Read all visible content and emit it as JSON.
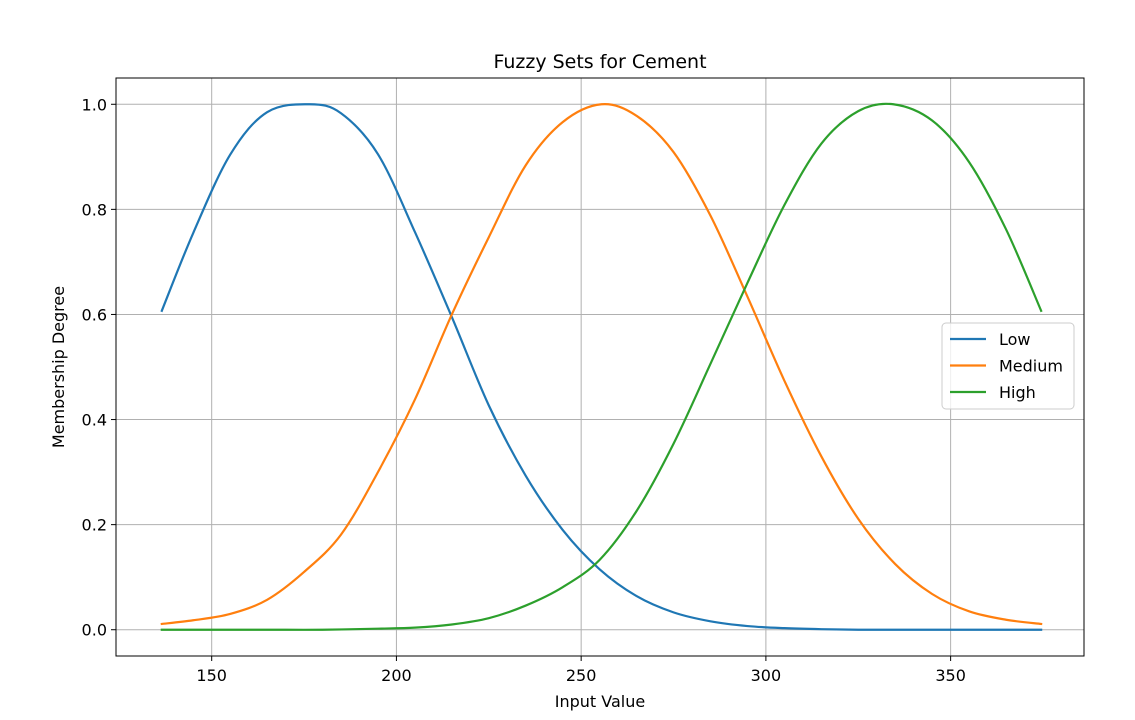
{
  "chart_data": {
    "type": "line",
    "title": "Fuzzy Sets for Cement",
    "xlabel": "Input Value",
    "ylabel": "Membership Degree",
    "xlim": [
      124.1,
      386.1
    ],
    "ylim": [
      -0.05,
      1.05
    ],
    "xticks": [
      150,
      200,
      250,
      300,
      350
    ],
    "yticks": [
      0.0,
      0.2,
      0.4,
      0.6,
      0.8,
      1.0
    ],
    "xtick_labels": [
      "150",
      "200",
      "250",
      "300",
      "350"
    ],
    "ytick_labels": [
      "0.0",
      "0.2",
      "0.4",
      "0.6",
      "0.8",
      "1.0"
    ],
    "grid": true,
    "legend": "center-right",
    "series": [
      {
        "name": "Low",
        "color": "#1f77b4",
        "x": [
          136.5,
          145,
          155,
          165,
          176.5,
          185,
          195,
          205,
          215,
          225,
          235,
          245,
          255,
          265,
          275,
          285,
          295,
          305,
          315,
          325,
          335,
          345,
          355,
          365,
          374.5
        ],
        "y": [
          0.607,
          0.755,
          0.904,
          0.985,
          1.0,
          0.983,
          0.905,
          0.757,
          0.595,
          0.427,
          0.293,
          0.19,
          0.115,
          0.064,
          0.033,
          0.016,
          0.007,
          0.003,
          0.001,
          0.0,
          0.0,
          0.0,
          0.0,
          0.0,
          0.0
        ]
      },
      {
        "name": "Medium",
        "color": "#ff7f0e",
        "x": [
          136.5,
          145,
          155,
          165,
          175,
          185,
          195,
          205,
          215,
          225,
          235,
          245,
          255.5,
          265,
          275,
          285,
          295,
          305,
          315,
          325,
          335,
          345,
          355,
          365,
          374.5
        ],
        "y": [
          0.011,
          0.018,
          0.03,
          0.057,
          0.11,
          0.181,
          0.3,
          0.438,
          0.6,
          0.747,
          0.884,
          0.966,
          1.0,
          0.978,
          0.909,
          0.788,
          0.634,
          0.474,
          0.33,
          0.211,
          0.125,
          0.068,
          0.035,
          0.019,
          0.011
        ]
      },
      {
        "name": "High",
        "color": "#2ca02c",
        "x": [
          136.5,
          150,
          165,
          180,
          195,
          205,
          215,
          225,
          235,
          245,
          255,
          265,
          275,
          285,
          295,
          305,
          315,
          325,
          334.5,
          345,
          355,
          365,
          374.5
        ],
        "y": [
          0.0,
          0.0,
          0.0,
          0.0,
          0.002,
          0.004,
          0.01,
          0.022,
          0.046,
          0.081,
          0.133,
          0.226,
          0.354,
          0.506,
          0.66,
          0.808,
          0.925,
          0.987,
          1.0,
          0.969,
          0.89,
          0.762,
          0.607
        ]
      }
    ]
  }
}
